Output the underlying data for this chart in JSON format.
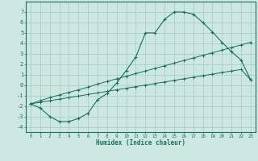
{
  "xlabel": "Humidex (Indice chaleur)",
  "ylabel": "",
  "bg_color": "#cde8e0",
  "grid_color": "#aacfc6",
  "line_color": "#1a6e60",
  "xlim": [
    -0.5,
    23.5
  ],
  "ylim": [
    -4.5,
    8.0
  ],
  "xticks": [
    0,
    1,
    2,
    3,
    4,
    5,
    6,
    7,
    8,
    9,
    10,
    11,
    12,
    13,
    14,
    15,
    16,
    17,
    18,
    19,
    20,
    21,
    22,
    23
  ],
  "yticks": [
    -4,
    -3,
    -2,
    -1,
    0,
    1,
    2,
    3,
    4,
    5,
    6,
    7
  ],
  "curve_x": [
    0,
    1,
    2,
    3,
    4,
    5,
    6,
    7,
    8,
    9,
    10,
    11,
    12,
    13,
    14,
    15,
    16,
    17,
    18,
    19,
    20,
    21,
    22,
    23
  ],
  "curve_y": [
    -1.8,
    -2.2,
    -3.0,
    -3.5,
    -3.5,
    -3.2,
    -2.7,
    -1.4,
    -0.8,
    0.2,
    1.4,
    2.7,
    5.0,
    5.0,
    6.3,
    7.0,
    7.0,
    6.8,
    6.0,
    5.1,
    4.1,
    3.2,
    2.4,
    0.5
  ],
  "line1_x": [
    0,
    1,
    2,
    3,
    4,
    5,
    6,
    7,
    8,
    9,
    10,
    11,
    12,
    13,
    14,
    15,
    16,
    17,
    18,
    19,
    20,
    21,
    22,
    23
  ],
  "line1_y": [
    -1.8,
    -1.5,
    -1.2,
    -0.95,
    -0.7,
    -0.45,
    -0.2,
    0.1,
    0.35,
    0.6,
    0.85,
    1.1,
    1.35,
    1.6,
    1.85,
    2.1,
    2.35,
    2.6,
    2.85,
    3.1,
    3.35,
    3.6,
    3.85,
    4.1
  ],
  "line2_x": [
    0,
    1,
    2,
    3,
    4,
    5,
    6,
    7,
    8,
    9,
    10,
    11,
    12,
    13,
    14,
    15,
    16,
    17,
    18,
    19,
    20,
    21,
    22,
    23
  ],
  "line2_y": [
    -1.8,
    -1.65,
    -1.5,
    -1.35,
    -1.2,
    -1.05,
    -0.9,
    -0.75,
    -0.6,
    -0.45,
    -0.3,
    -0.15,
    0.0,
    0.15,
    0.3,
    0.45,
    0.6,
    0.75,
    0.9,
    1.05,
    1.2,
    1.35,
    1.5,
    0.5
  ],
  "marker": "+"
}
